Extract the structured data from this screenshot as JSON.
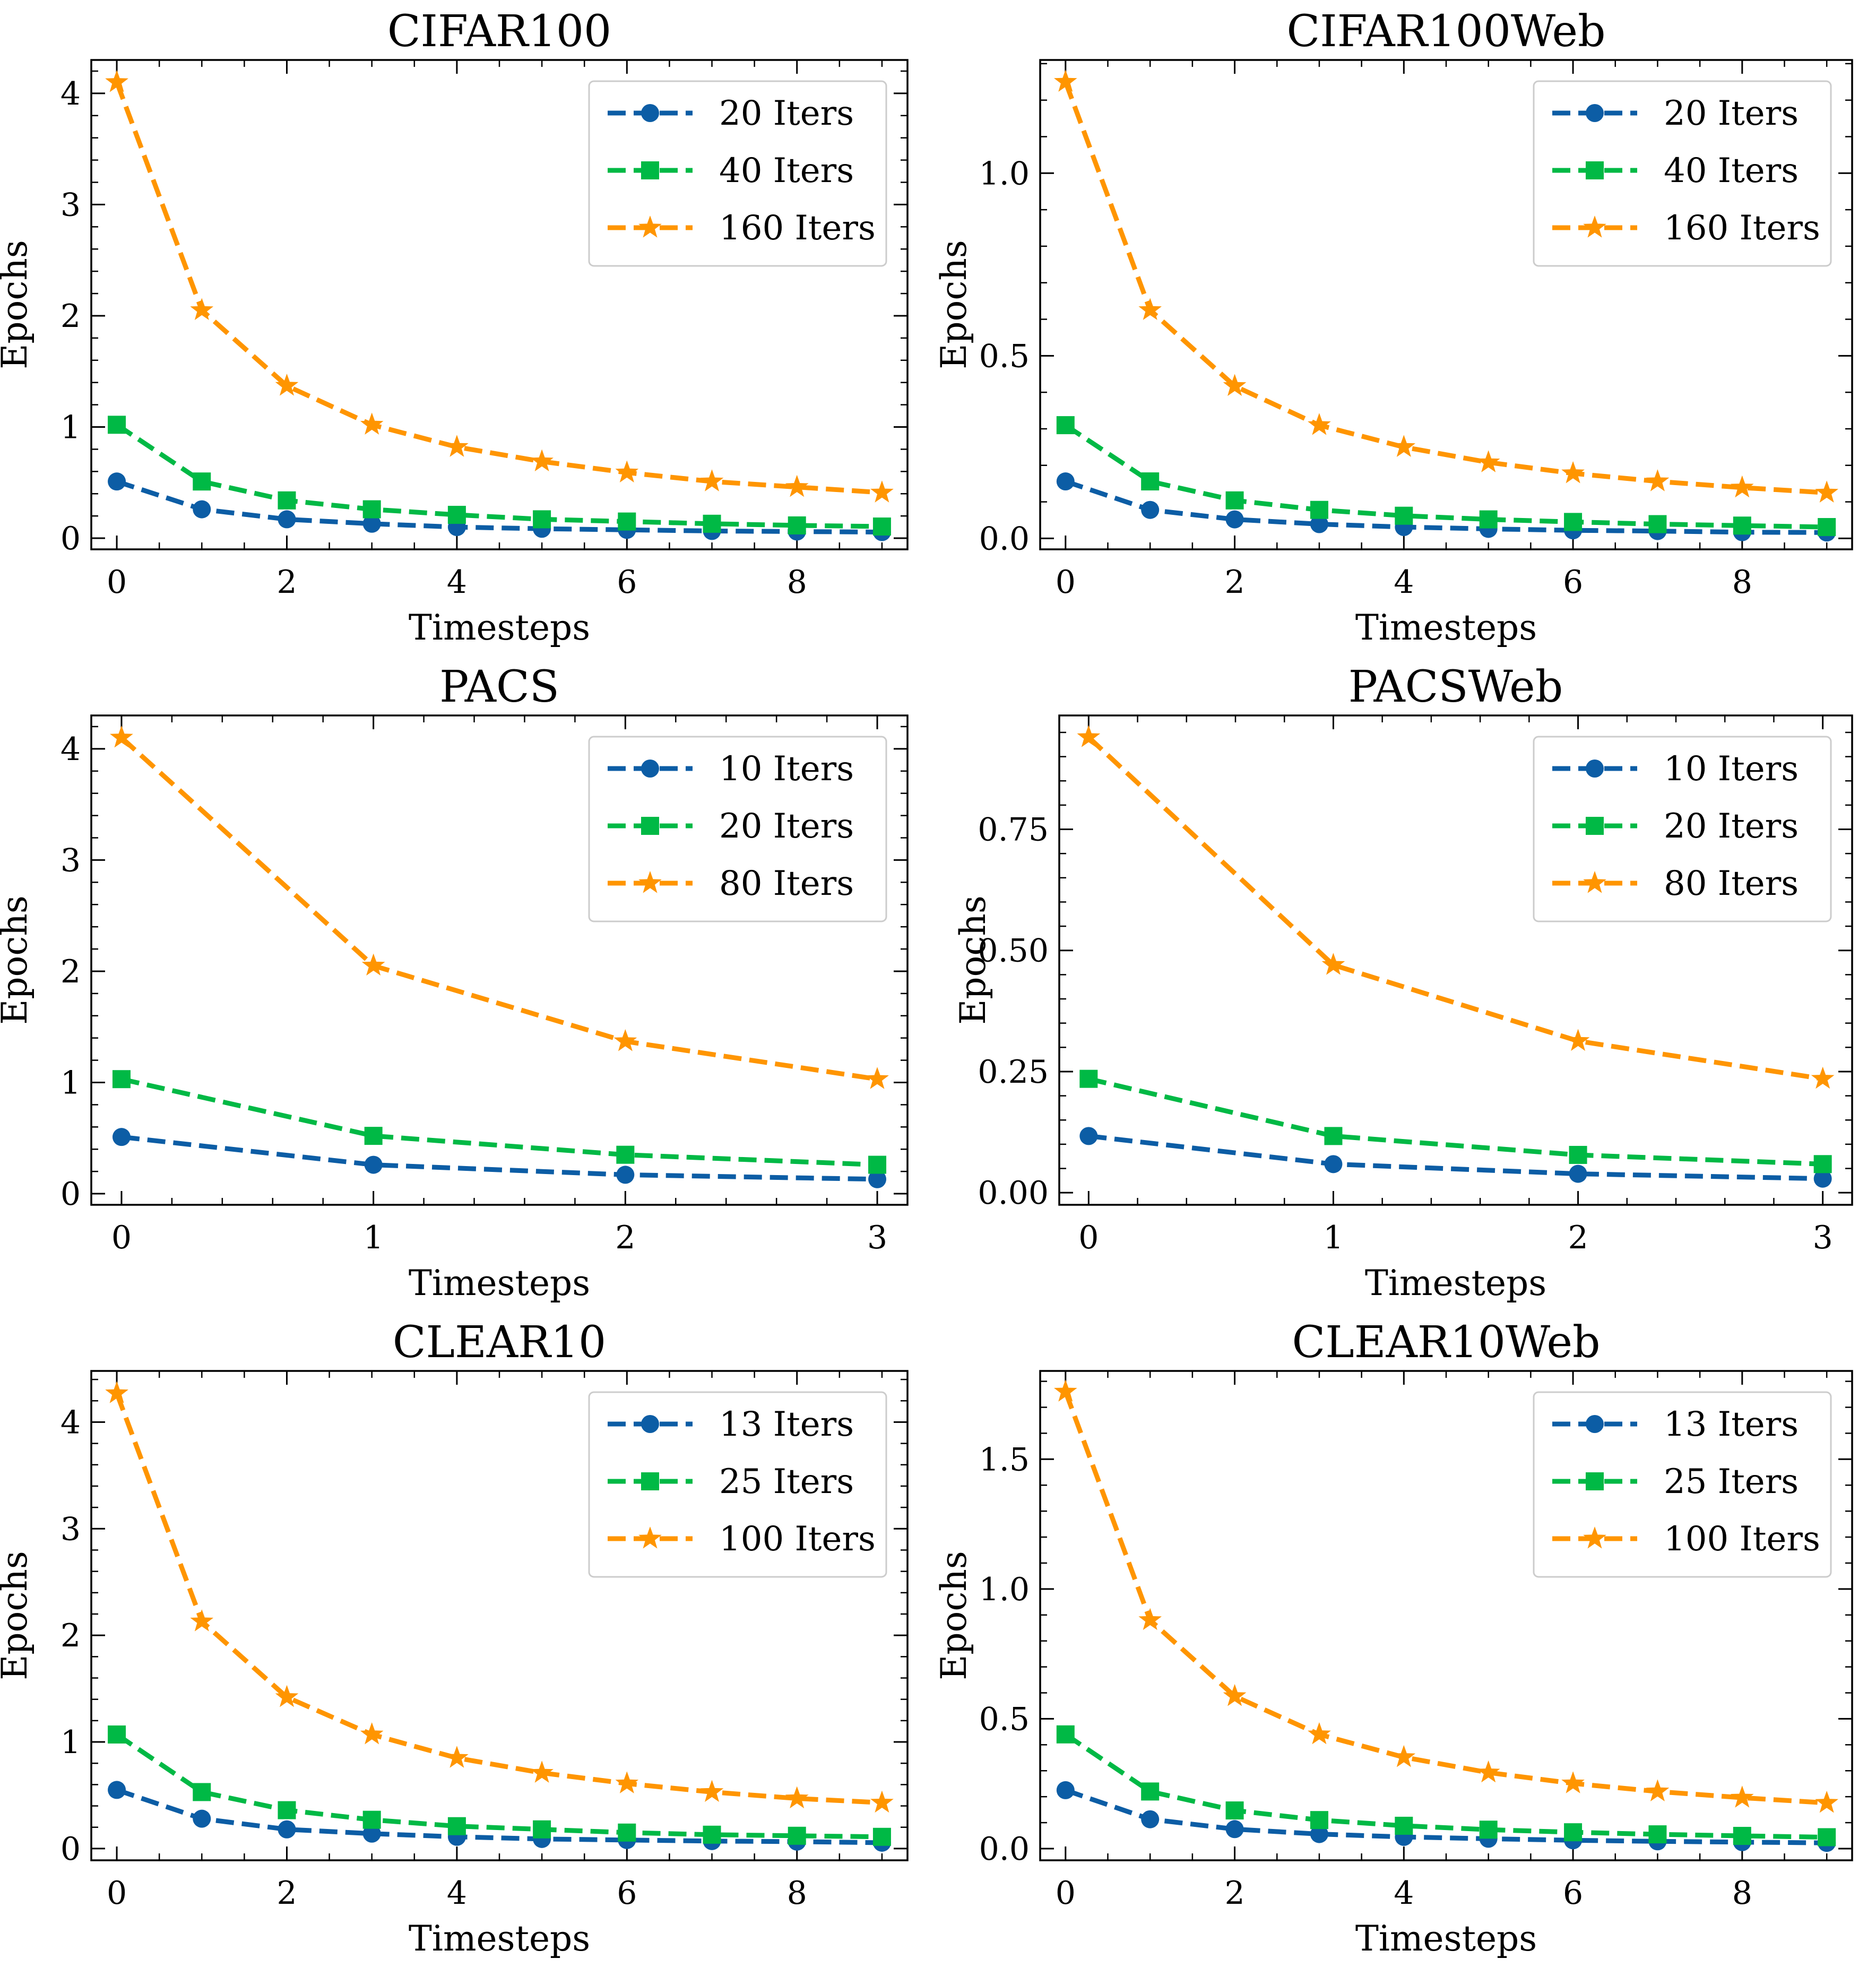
{
  "figure": {
    "xlabel": "Timesteps",
    "ylabel": "Epochs"
  },
  "colors": {
    "series1": "#0C5DA5",
    "series2": "#00B945",
    "series3": "#FF9500"
  },
  "markers": [
    "circle",
    "square",
    "star"
  ],
  "chart_data": [
    {
      "type": "line",
      "title": "CIFAR100",
      "xlabel": "Timesteps",
      "ylabel": "Epochs",
      "x": [
        0,
        1,
        2,
        3,
        4,
        5,
        6,
        7,
        8,
        9
      ],
      "xlim": [
        -0.3,
        9.3
      ],
      "ylim": [
        -0.1,
        4.3
      ],
      "xticks": [
        0,
        2,
        4,
        6,
        8
      ],
      "xtick_labels": [
        "0",
        "2",
        "4",
        "6",
        "8"
      ],
      "yticks": [
        0,
        1,
        2,
        3,
        4
      ],
      "ytick_labels": [
        "0",
        "1",
        "2",
        "3",
        "4"
      ],
      "legend": "top-right",
      "series": [
        {
          "name": "20 Iters",
          "values": [
            0.51,
            0.26,
            0.17,
            0.13,
            0.1,
            0.085,
            0.075,
            0.065,
            0.06,
            0.055
          ]
        },
        {
          "name": "40 Iters",
          "values": [
            1.02,
            0.51,
            0.34,
            0.26,
            0.21,
            0.17,
            0.15,
            0.13,
            0.115,
            0.105
          ]
        },
        {
          "name": "160 Iters",
          "values": [
            4.1,
            2.05,
            1.37,
            1.02,
            0.82,
            0.69,
            0.59,
            0.51,
            0.46,
            0.41
          ]
        }
      ]
    },
    {
      "type": "line",
      "title": "CIFAR100Web",
      "xlabel": "Timesteps",
      "ylabel": "Epochs",
      "x": [
        0,
        1,
        2,
        3,
        4,
        5,
        6,
        7,
        8,
        9
      ],
      "xlim": [
        -0.3,
        9.3
      ],
      "ylim": [
        -0.03,
        1.31
      ],
      "xticks": [
        0,
        2,
        4,
        6,
        8
      ],
      "xtick_labels": [
        "0",
        "2",
        "4",
        "6",
        "8"
      ],
      "yticks": [
        0,
        0.5,
        1.0
      ],
      "ytick_labels": [
        "0.0",
        "0.5",
        "1.0"
      ],
      "legend": "top-right",
      "series": [
        {
          "name": "20 Iters",
          "values": [
            0.156,
            0.078,
            0.052,
            0.039,
            0.031,
            0.026,
            0.022,
            0.02,
            0.017,
            0.016
          ]
        },
        {
          "name": "40 Iters",
          "values": [
            0.31,
            0.156,
            0.104,
            0.078,
            0.062,
            0.052,
            0.045,
            0.039,
            0.035,
            0.031
          ]
        },
        {
          "name": "160 Iters",
          "values": [
            1.25,
            0.625,
            0.417,
            0.31,
            0.25,
            0.208,
            0.178,
            0.156,
            0.139,
            0.125
          ]
        }
      ]
    },
    {
      "type": "line",
      "title": "PACS",
      "xlabel": "Timesteps",
      "ylabel": "Epochs",
      "x": [
        0,
        1,
        2,
        3
      ],
      "xlim": [
        -0.12,
        3.12
      ],
      "ylim": [
        -0.1,
        4.3
      ],
      "xticks": [
        0,
        1,
        2,
        3
      ],
      "xtick_labels": [
        "0",
        "1",
        "2",
        "3"
      ],
      "yticks": [
        0,
        1,
        2,
        3,
        4
      ],
      "ytick_labels": [
        "0",
        "1",
        "2",
        "3",
        "4"
      ],
      "legend": "top-right",
      "series": [
        {
          "name": "10 Iters",
          "values": [
            0.51,
            0.26,
            0.17,
            0.13
          ]
        },
        {
          "name": "20 Iters",
          "values": [
            1.03,
            0.52,
            0.35,
            0.26
          ]
        },
        {
          "name": "80 Iters",
          "values": [
            4.1,
            2.05,
            1.37,
            1.03
          ]
        }
      ]
    },
    {
      "type": "line",
      "title": "PACSWeb",
      "xlabel": "Timesteps",
      "ylabel": "Epochs",
      "x": [
        0,
        1,
        2,
        3
      ],
      "xlim": [
        -0.12,
        3.12
      ],
      "ylim": [
        -0.025,
        0.985
      ],
      "xticks": [
        0,
        1,
        2,
        3
      ],
      "xtick_labels": [
        "0",
        "1",
        "2",
        "3"
      ],
      "yticks": [
        0,
        0.25,
        0.5,
        0.75
      ],
      "ytick_labels": [
        "0.00",
        "0.25",
        "0.50",
        "0.75"
      ],
      "legend": "top-right",
      "series": [
        {
          "name": "10 Iters",
          "values": [
            0.117,
            0.059,
            0.039,
            0.029
          ]
        },
        {
          "name": "20 Iters",
          "values": [
            0.235,
            0.117,
            0.078,
            0.059
          ]
        },
        {
          "name": "80 Iters",
          "values": [
            0.94,
            0.47,
            0.313,
            0.235
          ]
        }
      ]
    },
    {
      "type": "line",
      "title": "CLEAR10",
      "xlabel": "Timesteps",
      "ylabel": "Epochs",
      "x": [
        0,
        1,
        2,
        3,
        4,
        5,
        6,
        7,
        8,
        9
      ],
      "xlim": [
        -0.3,
        9.3
      ],
      "ylim": [
        -0.11,
        4.48
      ],
      "xticks": [
        0,
        2,
        4,
        6,
        8
      ],
      "xtick_labels": [
        "0",
        "2",
        "4",
        "6",
        "8"
      ],
      "yticks": [
        0,
        1,
        2,
        3,
        4
      ],
      "ytick_labels": [
        "0",
        "1",
        "2",
        "3",
        "4"
      ],
      "legend": "top-right",
      "series": [
        {
          "name": "13 Iters",
          "values": [
            0.55,
            0.28,
            0.18,
            0.14,
            0.11,
            0.09,
            0.08,
            0.07,
            0.065,
            0.055
          ]
        },
        {
          "name": "25 Iters",
          "values": [
            1.07,
            0.53,
            0.36,
            0.27,
            0.21,
            0.18,
            0.15,
            0.13,
            0.12,
            0.11
          ]
        },
        {
          "name": "100 Iters",
          "values": [
            4.27,
            2.13,
            1.42,
            1.07,
            0.85,
            0.71,
            0.61,
            0.53,
            0.47,
            0.43
          ]
        }
      ]
    },
    {
      "type": "line",
      "title": "CLEAR10Web",
      "xlabel": "Timesteps",
      "ylabel": "Epochs",
      "x": [
        0,
        1,
        2,
        3,
        4,
        5,
        6,
        7,
        8,
        9
      ],
      "xlim": [
        -0.3,
        9.3
      ],
      "ylim": [
        -0.045,
        1.84
      ],
      "xticks": [
        0,
        2,
        4,
        6,
        8
      ],
      "xtick_labels": [
        "0",
        "2",
        "4",
        "6",
        "8"
      ],
      "yticks": [
        0,
        0.5,
        1.0,
        1.5
      ],
      "ytick_labels": [
        "0.0",
        "0.5",
        "1.0",
        "1.5"
      ],
      "legend": "top-right",
      "series": [
        {
          "name": "13 Iters",
          "values": [
            0.225,
            0.113,
            0.075,
            0.056,
            0.045,
            0.038,
            0.032,
            0.028,
            0.025,
            0.022
          ]
        },
        {
          "name": "25 Iters",
          "values": [
            0.44,
            0.22,
            0.147,
            0.11,
            0.088,
            0.073,
            0.063,
            0.055,
            0.049,
            0.044
          ]
        },
        {
          "name": "100 Iters",
          "values": [
            1.76,
            0.88,
            0.587,
            0.44,
            0.352,
            0.293,
            0.251,
            0.22,
            0.196,
            0.176
          ]
        }
      ]
    }
  ]
}
